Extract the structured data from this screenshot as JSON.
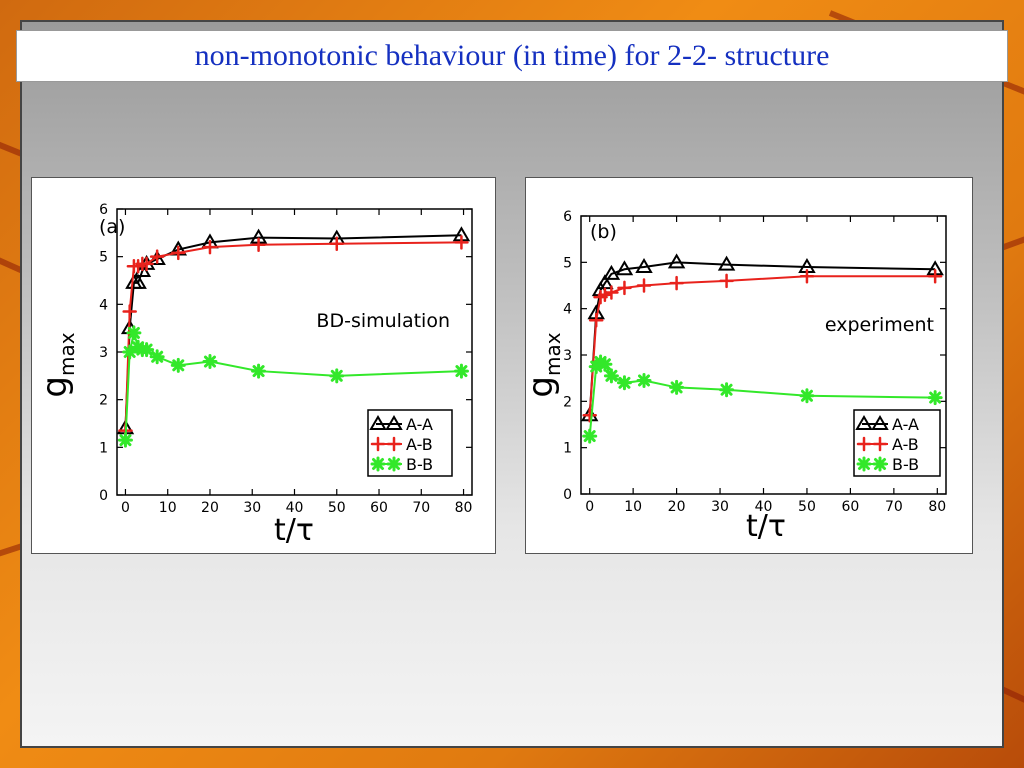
{
  "slide": {
    "title": "non-monotonic behaviour (in time) for 2-2- structure"
  },
  "colors": {
    "aa": "#000000",
    "ab": "#e8221c",
    "bb": "#33e82a",
    "title": "#1530c0"
  },
  "chart_data": [
    {
      "type": "line",
      "panel_label": "(a)",
      "annotation": "BD-simulation",
      "xlabel": "t/τ",
      "ylabel": "g",
      "ylabel_sub": "max",
      "xlim": [
        -2,
        82
      ],
      "ylim": [
        0,
        6
      ],
      "xticks": [
        0,
        10,
        20,
        30,
        40,
        50,
        60,
        70,
        80
      ],
      "yticks": [
        0,
        1,
        2,
        3,
        4,
        5,
        6
      ],
      "legend_position": "bottom-right",
      "series": [
        {
          "name": "A-A",
          "marker": "triangle",
          "color": "#000000",
          "x": [
            0,
            1,
            2,
            3,
            4,
            5,
            7.5,
            12.5,
            20,
            31.5,
            50,
            79.5
          ],
          "y": [
            1.4,
            3.5,
            4.45,
            4.45,
            4.7,
            4.85,
            4.95,
            5.15,
            5.3,
            5.4,
            5.38,
            5.45
          ]
        },
        {
          "name": "A-B",
          "marker": "plus",
          "color": "#e8221c",
          "x": [
            0,
            1,
            2,
            3,
            4,
            5,
            7.5,
            12.5,
            20,
            31.5,
            50,
            79.5
          ],
          "y": [
            1.35,
            3.85,
            4.8,
            4.8,
            4.85,
            4.85,
            5.0,
            5.08,
            5.2,
            5.25,
            5.27,
            5.3
          ]
        },
        {
          "name": "B-B",
          "marker": "asterisk",
          "color": "#33e82a",
          "x": [
            0,
            1,
            2,
            3,
            4,
            5,
            7.5,
            12.5,
            20,
            31.5,
            50,
            79.5
          ],
          "y": [
            1.15,
            3.0,
            3.4,
            3.1,
            3.05,
            3.05,
            2.9,
            2.72,
            2.8,
            2.6,
            2.5,
            2.6
          ]
        }
      ]
    },
    {
      "type": "line",
      "panel_label": "(b)",
      "annotation": "experiment",
      "xlabel": "t/τ",
      "ylabel": "g",
      "ylabel_sub": "max",
      "xlim": [
        -2,
        82
      ],
      "ylim": [
        0,
        6
      ],
      "xticks": [
        0,
        10,
        20,
        30,
        40,
        50,
        60,
        70,
        80
      ],
      "yticks": [
        0,
        1,
        2,
        3,
        4,
        5,
        6
      ],
      "legend_position": "bottom-right",
      "series": [
        {
          "name": "A-A",
          "marker": "triangle",
          "color": "#000000",
          "x": [
            0,
            1.5,
            2.5,
            3.5,
            5,
            8,
            12.5,
            20,
            31.5,
            50,
            79.5
          ],
          "y": [
            1.7,
            3.9,
            4.4,
            4.55,
            4.75,
            4.85,
            4.9,
            5.0,
            4.95,
            4.9,
            4.85
          ]
        },
        {
          "name": "A-B",
          "marker": "plus",
          "color": "#e8221c",
          "x": [
            0,
            1.5,
            2.5,
            3.5,
            5,
            8,
            12.5,
            20,
            31.5,
            50,
            79.5
          ],
          "y": [
            1.7,
            3.75,
            4.25,
            4.3,
            4.35,
            4.45,
            4.5,
            4.55,
            4.6,
            4.7,
            4.7
          ]
        },
        {
          "name": "B-B",
          "marker": "asterisk",
          "color": "#33e82a",
          "x": [
            0,
            1.5,
            2.5,
            3.5,
            5,
            8,
            12.5,
            20,
            31.5,
            50,
            79.5
          ],
          "y": [
            1.25,
            2.75,
            2.85,
            2.8,
            2.55,
            2.4,
            2.45,
            2.3,
            2.25,
            2.12,
            2.08
          ]
        }
      ]
    }
  ]
}
